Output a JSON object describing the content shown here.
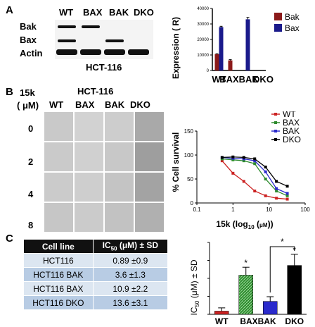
{
  "panel_a": {
    "label": "A",
    "lanes": [
      "WT",
      "BAX",
      "BAK",
      "DKO"
    ],
    "rows": [
      "Bak",
      "Bax",
      "Actin"
    ],
    "cell_line": "HCT-116"
  },
  "panel_b": {
    "label": "B",
    "compound": "15k",
    "unit": "( μM)",
    "cell_line": "HCT-116",
    "lanes": [
      "WT",
      "BAX",
      "BAK",
      "DKO"
    ],
    "doses": [
      "0",
      "2",
      "4",
      "8"
    ]
  },
  "panel_c": {
    "label": "C",
    "table": {
      "headers": [
        "Cell line",
        "IC50 (μM) ± SD"
      ],
      "rows": [
        [
          "HCT116",
          "0.89 ±0.9"
        ],
        [
          "HCT116 BAK",
          "3.6 ±1.3"
        ],
        [
          "HCT116 BAX",
          "10.9 ±2.2"
        ],
        [
          "HCT116 DKO",
          "13.6 ±3.1"
        ]
      ]
    }
  },
  "colors": {
    "bak": "#8b1a1a",
    "bax": "#1a1a8b",
    "wt_red": "#cc2222",
    "bax_green": "#2e8b2e",
    "bak_blue": "#2b2bcc",
    "dko_black": "#000000"
  },
  "chart_data": [
    {
      "type": "bar",
      "ylabel": "Expression ( R)",
      "categories": [
        "WT",
        "BAX",
        "BAK",
        "DKO"
      ],
      "category_text": "BAXBAK",
      "ylim": [
        0,
        40000
      ],
      "yticks": [
        "0",
        "10000",
        "20000",
        "30000",
        "40000"
      ],
      "series": [
        {
          "name": "Bak",
          "color": "#8b1a1a",
          "values": [
            10500,
            6500,
            0,
            0
          ],
          "errors": [
            300,
            500,
            0,
            0
          ]
        },
        {
          "name": "Bax",
          "color": "#1a1a8b",
          "values": [
            28000,
            0,
            33000,
            0
          ],
          "errors": [
            500,
            0,
            1200,
            0
          ]
        }
      ],
      "legend": "top-right"
    },
    {
      "type": "line",
      "ylabel": "% Cell survival",
      "xlabel": "15k (log10 (μM))",
      "xscale": "log",
      "xlim": [
        0.1,
        100
      ],
      "ylim": [
        0,
        150
      ],
      "xticks": [
        "0.1",
        "1",
        "10",
        "100"
      ],
      "yticks": [
        "0",
        "50",
        "100",
        "150"
      ],
      "x": [
        0.5,
        1,
        2,
        4,
        8,
        16,
        32
      ],
      "series": [
        {
          "name": "WT",
          "color": "#cc2222",
          "values": [
            88,
            62,
            45,
            25,
            15,
            10,
            8
          ]
        },
        {
          "name": "BAX",
          "color": "#2e8b2e",
          "values": [
            92,
            90,
            88,
            82,
            50,
            25,
            15
          ]
        },
        {
          "name": "BAK",
          "color": "#2b2bcc",
          "values": [
            95,
            93,
            92,
            88,
            65,
            30,
            20
          ]
        },
        {
          "name": "DKO",
          "color": "#000000",
          "values": [
            95,
            96,
            95,
            92,
            75,
            45,
            35
          ]
        }
      ],
      "legend": "top-right"
    },
    {
      "type": "bar",
      "ylabel": "IC50 (μM) ± SD",
      "categories": [
        "WT",
        "BAX",
        "BAK",
        "DKO"
      ],
      "category_text": "BAXBAK",
      "ylim": [
        0,
        20
      ],
      "yticks": [
        "0",
        "5",
        "10",
        "15",
        "20"
      ],
      "values": [
        0.89,
        10.9,
        3.6,
        13.6
      ],
      "errors": [
        0.9,
        2.2,
        1.3,
        3.1
      ],
      "colors": [
        "#cc2222",
        "#2e8b2e",
        "#2b2bcc",
        "#000000"
      ],
      "significance": [
        "",
        "*",
        "",
        "*"
      ],
      "bracket": {
        "from": "BAK",
        "to": "DKO",
        "label": "*"
      }
    }
  ]
}
